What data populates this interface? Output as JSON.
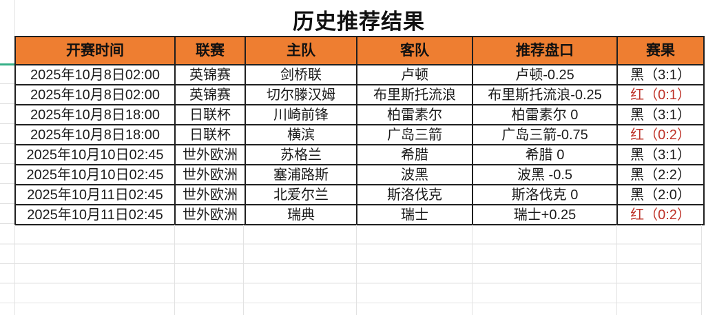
{
  "title": "历史推荐结果",
  "table": {
    "headers": [
      "开赛时间",
      "联赛",
      "主队",
      "客队",
      "推荐盘口",
      "赛果"
    ],
    "rows": [
      {
        "time": "2025年10月8日02:00",
        "league": "英锦赛",
        "home": "剑桥联",
        "away": "卢顿",
        "handicap": "卢顿-0.25",
        "result": "黑（3:1）",
        "result_color": "black"
      },
      {
        "time": "2025年10月8日02:00",
        "league": "英锦赛",
        "home": "切尔滕汉姆",
        "away": "布里斯托流浪",
        "handicap": "布里斯托流浪-0.25",
        "result": "红（0:1）",
        "result_color": "red"
      },
      {
        "time": "2025年10月8日18:00",
        "league": "日联杯",
        "home": "川崎前锋",
        "away": "柏雷素尔",
        "handicap": "柏雷素尔 0",
        "result": "黑（3:1）",
        "result_color": "black"
      },
      {
        "time": "2025年10月8日18:00",
        "league": "日联杯",
        "home": "横滨",
        "away": "广岛三箭",
        "handicap": "广岛三箭-0.75",
        "result": "红（0:2）",
        "result_color": "red"
      },
      {
        "time": "2025年10月10日02:45",
        "league": "世外欧洲",
        "home": "苏格兰",
        "away": "希腊",
        "handicap": "希腊 0",
        "result": "黑（3:1）",
        "result_color": "black"
      },
      {
        "time": "2025年10月10日02:45",
        "league": "世外欧洲",
        "home": "塞浦路斯",
        "away": "波黑",
        "handicap": "波黑 -0.5",
        "result": "黑（2:2）",
        "result_color": "black"
      },
      {
        "time": "2025年10月11日02:45",
        "league": "世外欧洲",
        "home": "北爱尔兰",
        "away": "斯洛伐克",
        "handicap": "斯洛伐克 0",
        "result": "黑（2:0）",
        "result_color": "black"
      },
      {
        "time": "2025年10月11日02:45",
        "league": "世外欧洲",
        "home": "瑞典",
        "away": "瑞士",
        "handicap": "瑞士+0.25",
        "result": "红（0:2）",
        "result_color": "red"
      }
    ]
  },
  "colors": {
    "header_bg": "#ee7e31",
    "result_red": "#be3228",
    "accent_green": "#35af86",
    "grid_light": "#e2e2e2",
    "border": "#1f1f1f"
  }
}
